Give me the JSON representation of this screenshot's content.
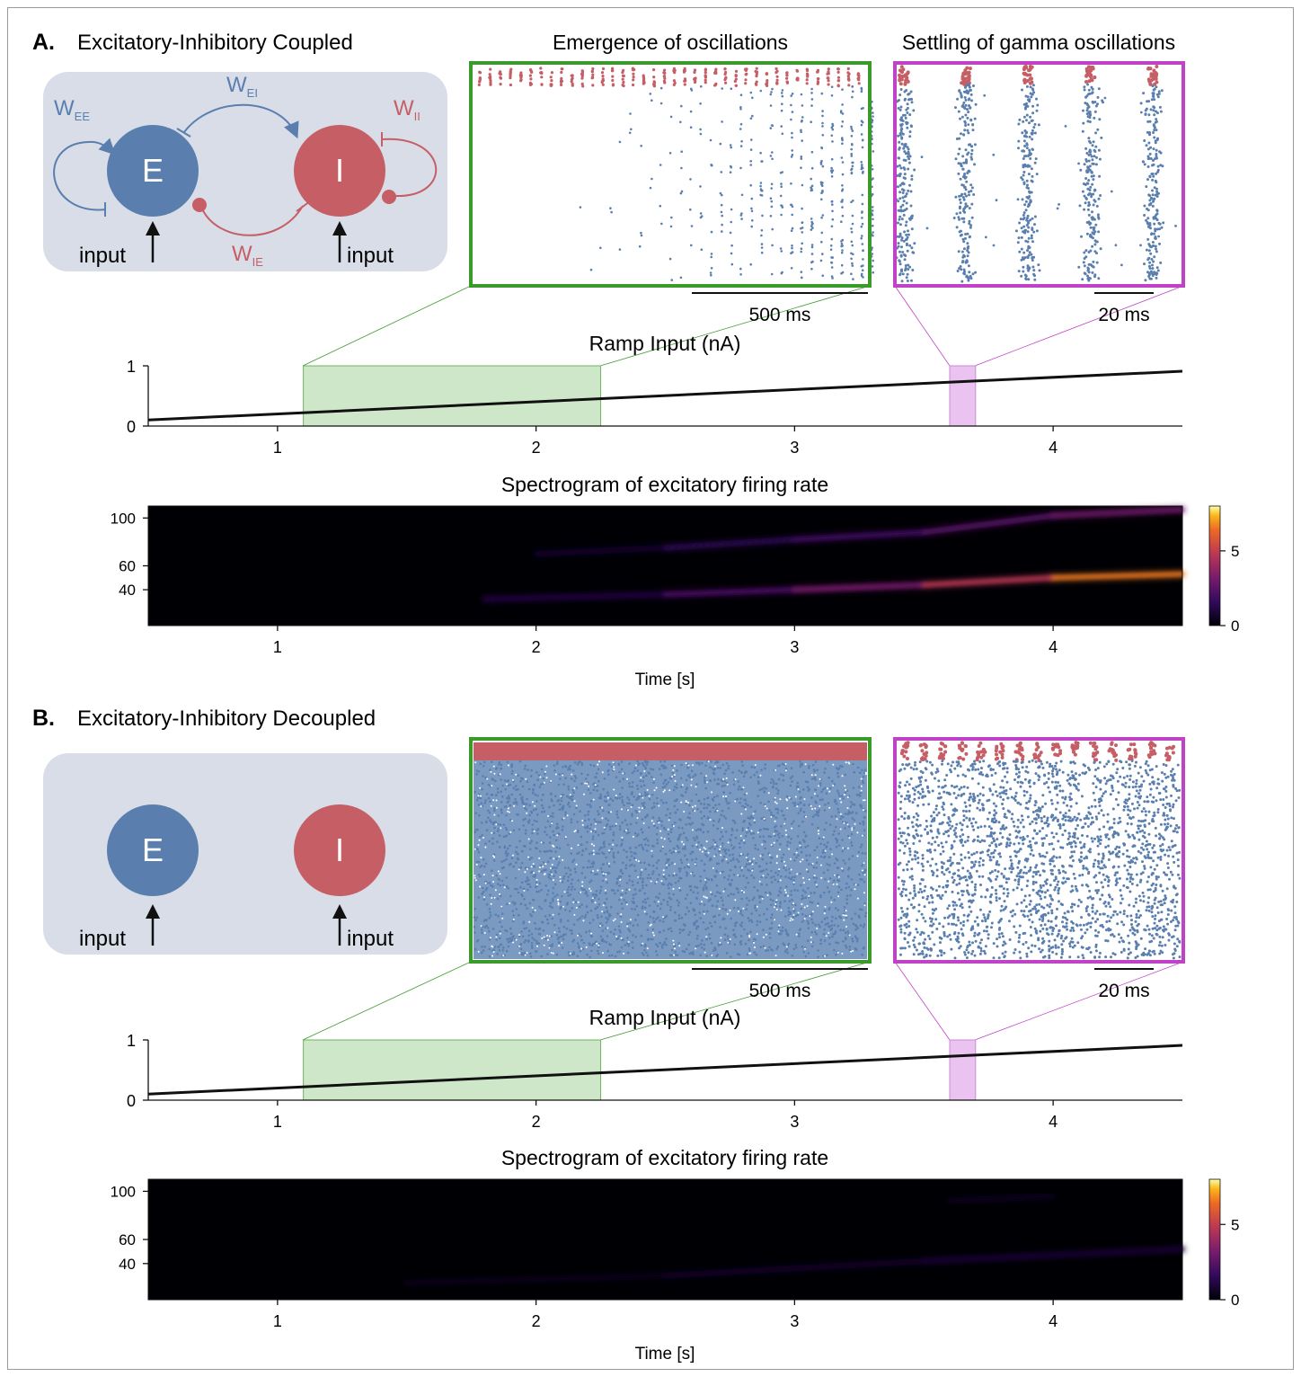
{
  "panels": [
    {
      "letter": "A.",
      "title": "Excitatory-Inhibitory Coupled",
      "coupled": true,
      "circuit": {
        "e_label": "E",
        "i_label": "I",
        "input_label": "input",
        "weights": {
          "ee": "EE",
          "ei": "EI",
          "ii": "II",
          "ie": "IE"
        },
        "weight_symbol": "W"
      },
      "raster_left": {
        "title": "Emergence of oscillations",
        "scale_label": "500 ms"
      },
      "raster_right": {
        "title": "Settling of gamma oscillations",
        "scale_label": "20 ms"
      },
      "ramp": {
        "type": "line",
        "title": "Ramp Input (nA)",
        "x": [
          0.5,
          4.5
        ],
        "y": [
          0.1,
          0.91
        ],
        "xlim": [
          0.5,
          4.5
        ],
        "ylim": [
          0,
          1
        ],
        "xticks": [
          "1",
          "2",
          "3",
          "4"
        ],
        "yticks": [
          "0",
          "1"
        ],
        "highlight_green": [
          1.1,
          2.25
        ],
        "highlight_magenta": [
          3.6,
          3.7
        ]
      },
      "spectrogram": {
        "type": "heatmap",
        "title": "Spectrogram of excitatory firing rate",
        "xlabel": "Time [s]",
        "xticks": [
          "1",
          "2",
          "3",
          "4"
        ],
        "yticks": [
          "100",
          "60",
          "40"
        ],
        "colorbar_ticks": [
          "5",
          "0"
        ],
        "xlim": [
          0.5,
          4.5
        ],
        "ylim": [
          10,
          110
        ],
        "bands": [
          {
            "t_start": 1.8,
            "t": [
              1.8,
              2.5,
              3.0,
              3.5,
              4.0,
              4.5
            ],
            "freq": [
              32,
              36,
              40,
              44,
              50,
              53
            ],
            "power": [
              0.5,
              1.5,
              2.5,
              3.5,
              5.5,
              7
            ]
          },
          {
            "t_start": 2.0,
            "t": [
              2.0,
              2.5,
              3.0,
              3.5,
              4.0,
              4.5
            ],
            "freq": [
              70,
              75,
              82,
              88,
              102,
              107
            ],
            "power": [
              0.3,
              1.0,
              1.6,
              2.0,
              2.6,
              3.0
            ]
          }
        ]
      }
    },
    {
      "letter": "B.",
      "title": "Excitatory-Inhibitory Decoupled",
      "coupled": false,
      "circuit": {
        "e_label": "E",
        "i_label": "I",
        "input_label": "input"
      },
      "raster_left": {
        "title": "",
        "scale_label": "500 ms"
      },
      "raster_right": {
        "title": "",
        "scale_label": "20 ms"
      },
      "ramp": {
        "type": "line",
        "title": "Ramp Input (nA)",
        "x": [
          0.5,
          4.5
        ],
        "y": [
          0.1,
          0.91
        ],
        "xlim": [
          0.5,
          4.5
        ],
        "ylim": [
          0,
          1
        ],
        "xticks": [
          "1",
          "2",
          "3",
          "4"
        ],
        "yticks": [
          "0",
          "1"
        ],
        "highlight_green": [
          1.1,
          2.25
        ],
        "highlight_magenta": [
          3.6,
          3.7
        ]
      },
      "spectrogram": {
        "type": "heatmap",
        "title": "Spectrogram of excitatory firing rate",
        "xlabel": "Time [s]",
        "xticks": [
          "1",
          "2",
          "3",
          "4"
        ],
        "yticks": [
          "100",
          "60",
          "40"
        ],
        "colorbar_ticks": [
          "5",
          "0"
        ],
        "xlim": [
          0.5,
          4.5
        ],
        "ylim": [
          10,
          110
        ],
        "bands": [
          {
            "t_start": 1.5,
            "t": [
              1.5,
              2.5,
              3.5,
              4.5
            ],
            "freq": [
              24,
              30,
              42,
              52
            ],
            "power": [
              0.3,
              0.5,
              0.7,
              0.9
            ]
          },
          {
            "t_start": 3.6,
            "t": [
              3.6,
              4.0
            ],
            "freq": [
              92,
              96
            ],
            "power": [
              0.4,
              0.5
            ]
          }
        ]
      }
    }
  ],
  "colors": {
    "excitatory": "#5a7fae",
    "inhibitory": "#c65e66",
    "circuit_bg": "#d8dde8",
    "zoom_green": "#3a9a2a",
    "zoom_magenta": "#c042c6",
    "highlight_green": "#a6d49a",
    "highlight_magenta": "#e5b4ec"
  }
}
